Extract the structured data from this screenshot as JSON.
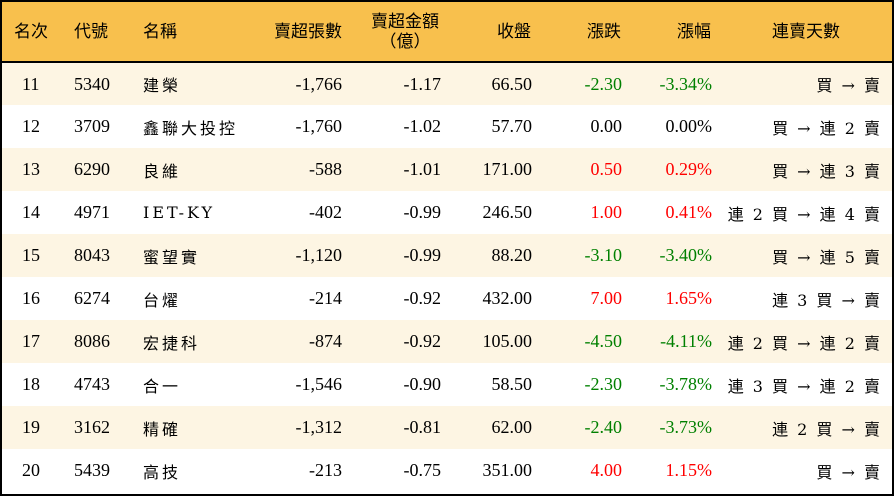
{
  "headers": {
    "rank": "名次",
    "code": "代號",
    "name": "名稱",
    "net_sell_lots": "賣超張數",
    "net_sell_amount": "賣超金額",
    "net_sell_amount_unit": "（億）",
    "close": "收盤",
    "change": "漲跌",
    "change_pct": "漲幅",
    "streak": "連賣天數"
  },
  "colors": {
    "header_bg": "#f8c04d",
    "stripe_bg": "#fdf5e3",
    "up": "#ff0000",
    "down": "#008000"
  },
  "rows": [
    {
      "rank": "11",
      "code": "5340",
      "name": "建榮",
      "lots": "-1,766",
      "amount": "-1.17",
      "close": "66.50",
      "change": "-2.30",
      "pct": "-3.34%",
      "dir": "down",
      "streak": "買 → 賣"
    },
    {
      "rank": "12",
      "code": "3709",
      "name": "鑫聯大投控",
      "lots": "-1,760",
      "amount": "-1.02",
      "close": "57.70",
      "change": "0.00",
      "pct": "0.00%",
      "dir": "flat",
      "streak": "買 → 連 2 賣"
    },
    {
      "rank": "13",
      "code": "6290",
      "name": "良維",
      "lots": "-588",
      "amount": "-1.01",
      "close": "171.00",
      "change": "0.50",
      "pct": "0.29%",
      "dir": "up",
      "streak": "買 → 連 3 賣"
    },
    {
      "rank": "14",
      "code": "4971",
      "name": "IET-KY",
      "lots": "-402",
      "amount": "-0.99",
      "close": "246.50",
      "change": "1.00",
      "pct": "0.41%",
      "dir": "up",
      "streak": "連 2 買 → 連 4 賣"
    },
    {
      "rank": "15",
      "code": "8043",
      "name": "蜜望實",
      "lots": "-1,120",
      "amount": "-0.99",
      "close": "88.20",
      "change": "-3.10",
      "pct": "-3.40%",
      "dir": "down",
      "streak": "買 → 連 5 賣"
    },
    {
      "rank": "16",
      "code": "6274",
      "name": "台燿",
      "lots": "-214",
      "amount": "-0.92",
      "close": "432.00",
      "change": "7.00",
      "pct": "1.65%",
      "dir": "up",
      "streak": "連 3 買 → 賣"
    },
    {
      "rank": "17",
      "code": "8086",
      "name": "宏捷科",
      "lots": "-874",
      "amount": "-0.92",
      "close": "105.00",
      "change": "-4.50",
      "pct": "-4.11%",
      "dir": "down",
      "streak": "連 2 買 → 連 2 賣"
    },
    {
      "rank": "18",
      "code": "4743",
      "name": "合一",
      "lots": "-1,546",
      "amount": "-0.90",
      "close": "58.50",
      "change": "-2.30",
      "pct": "-3.78%",
      "dir": "down",
      "streak": "連 3 買 → 連 2 賣"
    },
    {
      "rank": "19",
      "code": "3162",
      "name": "精確",
      "lots": "-1,312",
      "amount": "-0.81",
      "close": "62.00",
      "change": "-2.40",
      "pct": "-3.73%",
      "dir": "down",
      "streak": "連 2 買 → 賣"
    },
    {
      "rank": "20",
      "code": "5439",
      "name": "高技",
      "lots": "-213",
      "amount": "-0.75",
      "close": "351.00",
      "change": "4.00",
      "pct": "1.15%",
      "dir": "up",
      "streak": "買 → 賣"
    }
  ]
}
